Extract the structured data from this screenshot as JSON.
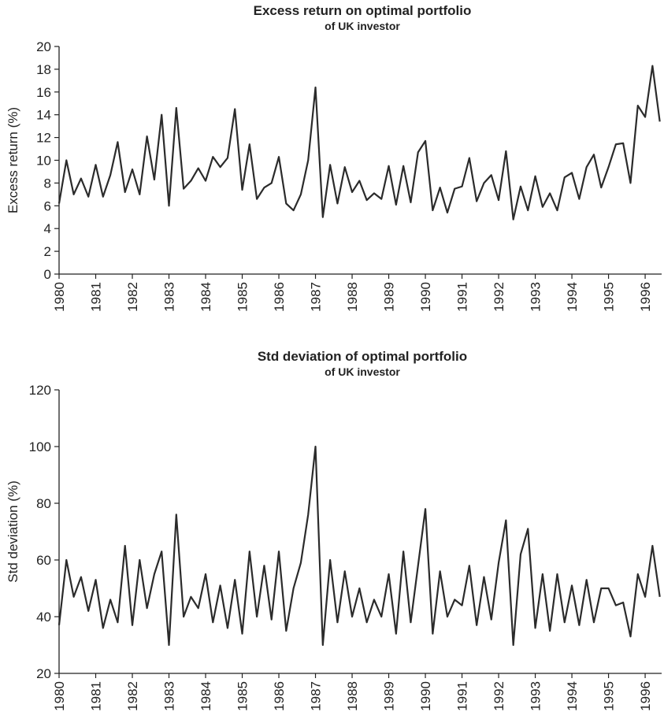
{
  "chart_data": [
    {
      "type": "line",
      "title": "Excess return on optimal portfolio",
      "subtitle": "of UK investor",
      "y_label": "Excess return (%)",
      "x": [
        1980,
        1980.2,
        1980.4,
        1980.6,
        1980.8,
        1981,
        1981.2,
        1981.4,
        1981.6,
        1981.8,
        1982,
        1982.2,
        1982.4,
        1982.6,
        1982.8,
        1983,
        1983.2,
        1983.4,
        1983.6,
        1983.8,
        1984,
        1984.2,
        1984.4,
        1984.6,
        1984.8,
        1985,
        1985.2,
        1985.4,
        1985.6,
        1985.8,
        1986,
        1986.2,
        1986.4,
        1986.6,
        1986.8,
        1987,
        1987.2,
        1987.4,
        1987.6,
        1987.8,
        1988,
        1988.2,
        1988.4,
        1988.6,
        1988.8,
        1989,
        1989.2,
        1989.4,
        1989.6,
        1989.8,
        1990,
        1990.2,
        1990.4,
        1990.6,
        1990.8,
        1991,
        1991.2,
        1991.4,
        1991.6,
        1991.8,
        1992,
        1992.2,
        1992.4,
        1992.6,
        1992.8,
        1993,
        1993.2,
        1993.4,
        1993.6,
        1993.8,
        1994,
        1994.2,
        1994.4,
        1994.6,
        1994.8,
        1995,
        1995.2,
        1995.4,
        1995.6,
        1995.8,
        1996,
        1996.2,
        1996.4
      ],
      "series": [
        {
          "name": "Excess return",
          "color": "#2b2b2b",
          "values": [
            6.2,
            10.0,
            7.0,
            8.4,
            6.8,
            9.6,
            6.8,
            8.7,
            11.6,
            7.2,
            9.2,
            7.0,
            12.1,
            8.3,
            14.0,
            6.0,
            14.6,
            7.5,
            8.2,
            9.3,
            8.2,
            10.3,
            9.4,
            10.2,
            14.5,
            7.4,
            11.4,
            6.6,
            7.6,
            8.0,
            10.3,
            6.2,
            5.6,
            7.0,
            10.0,
            16.4,
            5.0,
            9.6,
            6.2,
            9.4,
            7.2,
            8.2,
            6.5,
            7.1,
            6.6,
            9.5,
            6.1,
            9.5,
            6.3,
            10.7,
            11.7,
            5.6,
            7.6,
            5.4,
            7.5,
            7.7,
            10.2,
            6.4,
            8.0,
            8.7,
            6.5,
            10.8,
            4.8,
            7.7,
            5.6,
            8.6,
            5.9,
            7.1,
            5.6,
            8.5,
            8.9,
            6.6,
            9.4,
            10.5,
            7.6,
            9.4,
            11.4,
            11.5,
            8.0,
            14.8,
            13.8,
            18.3,
            13.4
          ]
        }
      ],
      "xlim": [
        1980,
        1996.45
      ],
      "xticks": [
        1980,
        1981,
        1982,
        1983,
        1984,
        1985,
        1986,
        1987,
        1988,
        1989,
        1990,
        1991,
        1992,
        1993,
        1994,
        1995,
        1996
      ],
      "ylim": [
        0,
        20
      ],
      "yticks": [
        0,
        2,
        4,
        6,
        8,
        10,
        12,
        14,
        16,
        18,
        20
      ]
    },
    {
      "type": "line",
      "title": "Std deviation of optimal portfolio",
      "subtitle": "of UK investor",
      "y_label": "Std deviation (%)",
      "x": [
        1980,
        1980.2,
        1980.4,
        1980.6,
        1980.8,
        1981,
        1981.2,
        1981.4,
        1981.6,
        1981.8,
        1982,
        1982.2,
        1982.4,
        1982.6,
        1982.8,
        1983,
        1983.2,
        1983.4,
        1983.6,
        1983.8,
        1984,
        1984.2,
        1984.4,
        1984.6,
        1984.8,
        1985,
        1985.2,
        1985.4,
        1985.6,
        1985.8,
        1986,
        1986.2,
        1986.4,
        1986.6,
        1986.8,
        1987,
        1987.2,
        1987.4,
        1987.6,
        1987.8,
        1988,
        1988.2,
        1988.4,
        1988.6,
        1988.8,
        1989,
        1989.2,
        1989.4,
        1989.6,
        1989.8,
        1990,
        1990.2,
        1990.4,
        1990.6,
        1990.8,
        1991,
        1991.2,
        1991.4,
        1991.6,
        1991.8,
        1992,
        1992.2,
        1992.4,
        1992.6,
        1992.8,
        1993,
        1993.2,
        1993.4,
        1993.6,
        1993.8,
        1994,
        1994.2,
        1994.4,
        1994.6,
        1994.8,
        1995,
        1995.2,
        1995.4,
        1995.6,
        1995.8,
        1996,
        1996.2,
        1996.4
      ],
      "series": [
        {
          "name": "Std deviation",
          "color": "#2b2b2b",
          "values": [
            37,
            60,
            47,
            54,
            42,
            53,
            36,
            46,
            38,
            65,
            37,
            60,
            43,
            55,
            63,
            30,
            76,
            40,
            47,
            43,
            55,
            38,
            51,
            36,
            53,
            34,
            63,
            40,
            58,
            39,
            63,
            35,
            50,
            59,
            76,
            100,
            30,
            60,
            38,
            56,
            40,
            50,
            38,
            46,
            40,
            55,
            34,
            63,
            38,
            58,
            78,
            34,
            56,
            40,
            46,
            44,
            58,
            37,
            54,
            39,
            59,
            74,
            30,
            62,
            71,
            36,
            55,
            35,
            55,
            38,
            51,
            37,
            53,
            38,
            50,
            50,
            44,
            45,
            33,
            55,
            47,
            65,
            47
          ]
        }
      ],
      "xlim": [
        1980,
        1996.45
      ],
      "xticks": [
        1980,
        1981,
        1982,
        1983,
        1984,
        1985,
        1986,
        1987,
        1988,
        1989,
        1990,
        1991,
        1992,
        1993,
        1994,
        1995,
        1996
      ],
      "ylim": [
        20,
        120
      ],
      "yticks": [
        20,
        40,
        60,
        80,
        100,
        120
      ]
    }
  ]
}
